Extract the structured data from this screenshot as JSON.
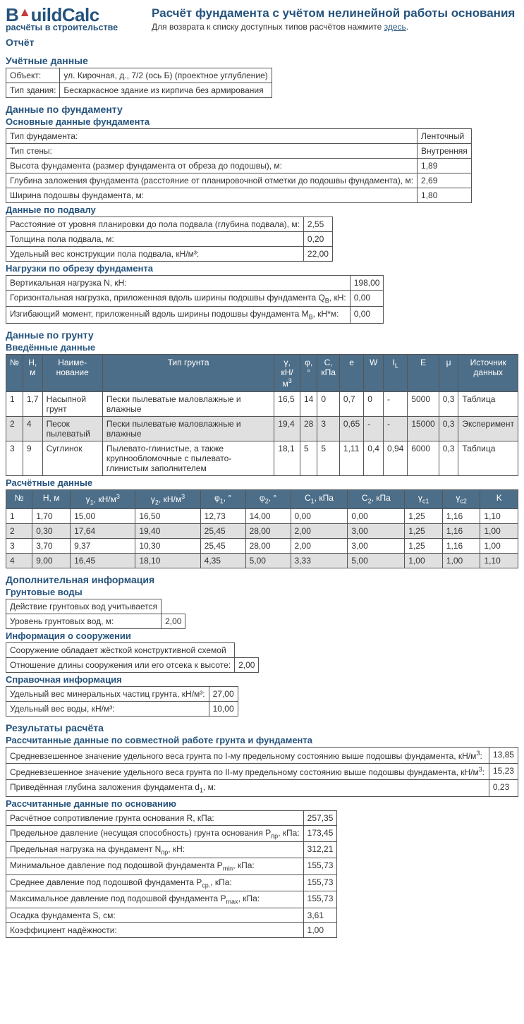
{
  "logo": {
    "brand1": "B",
    "brand2": "uildCalc",
    "tagline": "расчёты в строительстве"
  },
  "title": "Расчёт фундамента с учётом нелинейной работы основания",
  "return_note_pre": "Для возврата к списку доступных типов расчётов нажмите ",
  "return_link": "здесь",
  "return_note_post": ".",
  "report_label": "Отчёт",
  "sec_account": "Учётные данные",
  "account": {
    "object_label": "Объект:",
    "object_value": "ул. Кирочная, д., 7/2 (ось Б) (проектное углубление)",
    "building_type_label": "Тип здания:",
    "building_type_value": "Бескаркасное здание из кирпича без армирования"
  },
  "sec_foundation": "Данные по фундаменту",
  "sub_foundation_main": "Основные данные фундамента",
  "foundation_main": [
    [
      "Тип фундамента:",
      "Ленточный"
    ],
    [
      "Тип стены:",
      "Внутренняя"
    ],
    [
      "Высота фундамента (размер фундамента от обреза до подошвы), м:",
      "1,89"
    ],
    [
      "Глубина заложения фундамента (расстояние от планировочной отметки до подошвы фундамента), м:",
      "2,69"
    ],
    [
      "Ширина подошвы фундамента, м:",
      "1,80"
    ]
  ],
  "sub_basement": "Данные по подвалу",
  "basement": [
    [
      "Расстояние от уровня планировки до пола подвала (глубина подвала), м:",
      "2,55"
    ],
    [
      "Толщина пола подвала, м:",
      "0,20"
    ],
    [
      "Удельный вес конструкции пола подвала, кН/м³:",
      "22,00"
    ]
  ],
  "sub_loads": "Нагрузки по обрезу фундамента",
  "loads": [
    {
      "label_pre": "Вертикальная нагрузка N, кН:",
      "label_sub": "",
      "label_post": "",
      "value": "198,00"
    },
    {
      "label_pre": "Горизонтальная нагрузка, приложенная вдоль ширины подошвы фундамента Q",
      "label_sub": "B",
      "label_post": ", кН:",
      "value": "0,00"
    },
    {
      "label_pre": "Изгибающий момент, приложенный вдоль ширины подошвы фундамента M",
      "label_sub": "B",
      "label_post": ", кН*м:",
      "value": "0,00"
    }
  ],
  "sec_soil": "Данные по грунту",
  "sub_soil_input": "Введённые данные",
  "soil_headers": [
    "№",
    "H, м",
    "Наиме-\nнование",
    "Тип грунта",
    "γ, кН/м³",
    "φ, °",
    "C, кПа",
    "e",
    "W",
    "I_L",
    "E",
    "μ",
    "Источник данных"
  ],
  "soil_rows": [
    [
      "1",
      "1,7",
      "Насыпной грунт",
      "Пески пылеватые маловлажные и влажные",
      "16,5",
      "14",
      "0",
      "0,7",
      "0",
      "-",
      "5000",
      "0,3",
      "Таблица"
    ],
    [
      "2",
      "4",
      "Песок пылеватый",
      "Пески пылеватые маловлажные и влажные",
      "19,4",
      "28",
      "3",
      "0,65",
      "-",
      "-",
      "15000",
      "0,3",
      "Эксперимент"
    ],
    [
      "3",
      "9",
      "Суглинок",
      "Пылевато-глинистые, а также крупнообломочные с пылевато-глинистым заполнителем",
      "18,1",
      "5",
      "5",
      "1,11",
      "0,4",
      "0,94",
      "6000",
      "0,3",
      "Таблица"
    ]
  ],
  "sub_calc_data": "Расчётные данные",
  "calc_headers": [
    "№",
    "H, м",
    "γ₁, кН/м³",
    "γ₂, кН/м³",
    "φ₁, °",
    "φ₂, °",
    "C₁, кПа",
    "C₂, кПа",
    "γc1",
    "γc2",
    "K"
  ],
  "calc_rows": [
    [
      "1",
      "1,70",
      "15,00",
      "16,50",
      "12,73",
      "14,00",
      "0,00",
      "0,00",
      "1,25",
      "1,16",
      "1,10"
    ],
    [
      "2",
      "0,30",
      "17,64",
      "19,40",
      "25,45",
      "28,00",
      "2,00",
      "3,00",
      "1,25",
      "1,16",
      "1,00"
    ],
    [
      "3",
      "3,70",
      "9,37",
      "10,30",
      "25,45",
      "28,00",
      "2,00",
      "3,00",
      "1,25",
      "1,16",
      "1,00"
    ],
    [
      "4",
      "9,00",
      "16,45",
      "18,10",
      "4,35",
      "5,00",
      "3,33",
      "5,00",
      "1,00",
      "1,00",
      "1,10"
    ]
  ],
  "sec_additional": "Дополнительная информация",
  "sub_groundwater": "Грунтовые воды",
  "groundwater": [
    [
      "Действие грунтовых вод учитывается",
      ""
    ],
    [
      "Уровень грунтовых вод, м:",
      "2,00"
    ]
  ],
  "sub_structure": "Информация о сооружении",
  "structure": [
    [
      "Сооружение обладает жёсткой конструктивной схемой",
      ""
    ],
    [
      "Отношение длины сооружения или его отсека к высоте:",
      "2,00"
    ]
  ],
  "sub_reference": "Справочная информация",
  "reference": [
    [
      "Удельный вес минеральных частиц грунта, кН/м³:",
      "27,00"
    ],
    [
      "Удельный вес воды, кН/м³:",
      "10,00"
    ]
  ],
  "sec_results": "Результаты расчёта",
  "sub_results_joint": "Рассчитанные данные по совместной работе грунта и фундамента",
  "results_joint": [
    {
      "label_pre": "Средневзешенное значение удельного веса грунта по I-му предельному состоянию выше подошвы фундамента, кН/м",
      "sup": "3",
      "label_post": ":",
      "value": "13,85"
    },
    {
      "label_pre": "Средневзешенное значение удельного веса грунта по II-му предельному состоянию выше подошвы фундамента, кН/м",
      "sup": "3",
      "label_post": ":",
      "value": "15,23"
    },
    {
      "label_pre": "Приведённая глубина заложения фундамента d",
      "sub": "1",
      "label_post": ", м:",
      "value": "0,23"
    }
  ],
  "sub_results_base": "Рассчитанные данные по основанию",
  "results_base": [
    {
      "label_pre": "Расчётное сопротивление грунта основания R, кПа:",
      "value": "257,35"
    },
    {
      "label_pre": "Предельное давление (несущая способность) грунта основания P",
      "sub": "пр",
      "label_post": ", кПа:",
      "value": "173,45"
    },
    {
      "label_pre": "Предельная нагрузка на фундамент N",
      "sub": "пр",
      "label_post": ", кН:",
      "value": "312,21"
    },
    {
      "label_pre": "Минимальное давление под подошвой фундамента P",
      "sub": "min",
      "label_post": ", кПа:",
      "value": "155,73"
    },
    {
      "label_pre": "Среднее давление под подошвой фундамента P",
      "sub": "ср.",
      "label_post": ", кПа:",
      "value": "155,73"
    },
    {
      "label_pre": "Максимальное давление под подошвой фундамента P",
      "sub": "max",
      "label_post": ", кПа:",
      "value": "155,73"
    },
    {
      "label_pre": "Осадка фундамента S, см:",
      "value": "3,61"
    },
    {
      "label_pre": "Коэффициент надёжности:",
      "value": "1,00"
    }
  ],
  "colors": {
    "heading": "#25537d",
    "th_bg": "#4d6e88",
    "th_fg": "#ffffff",
    "alt_row": "#e0e0e0",
    "border": "#555555"
  }
}
